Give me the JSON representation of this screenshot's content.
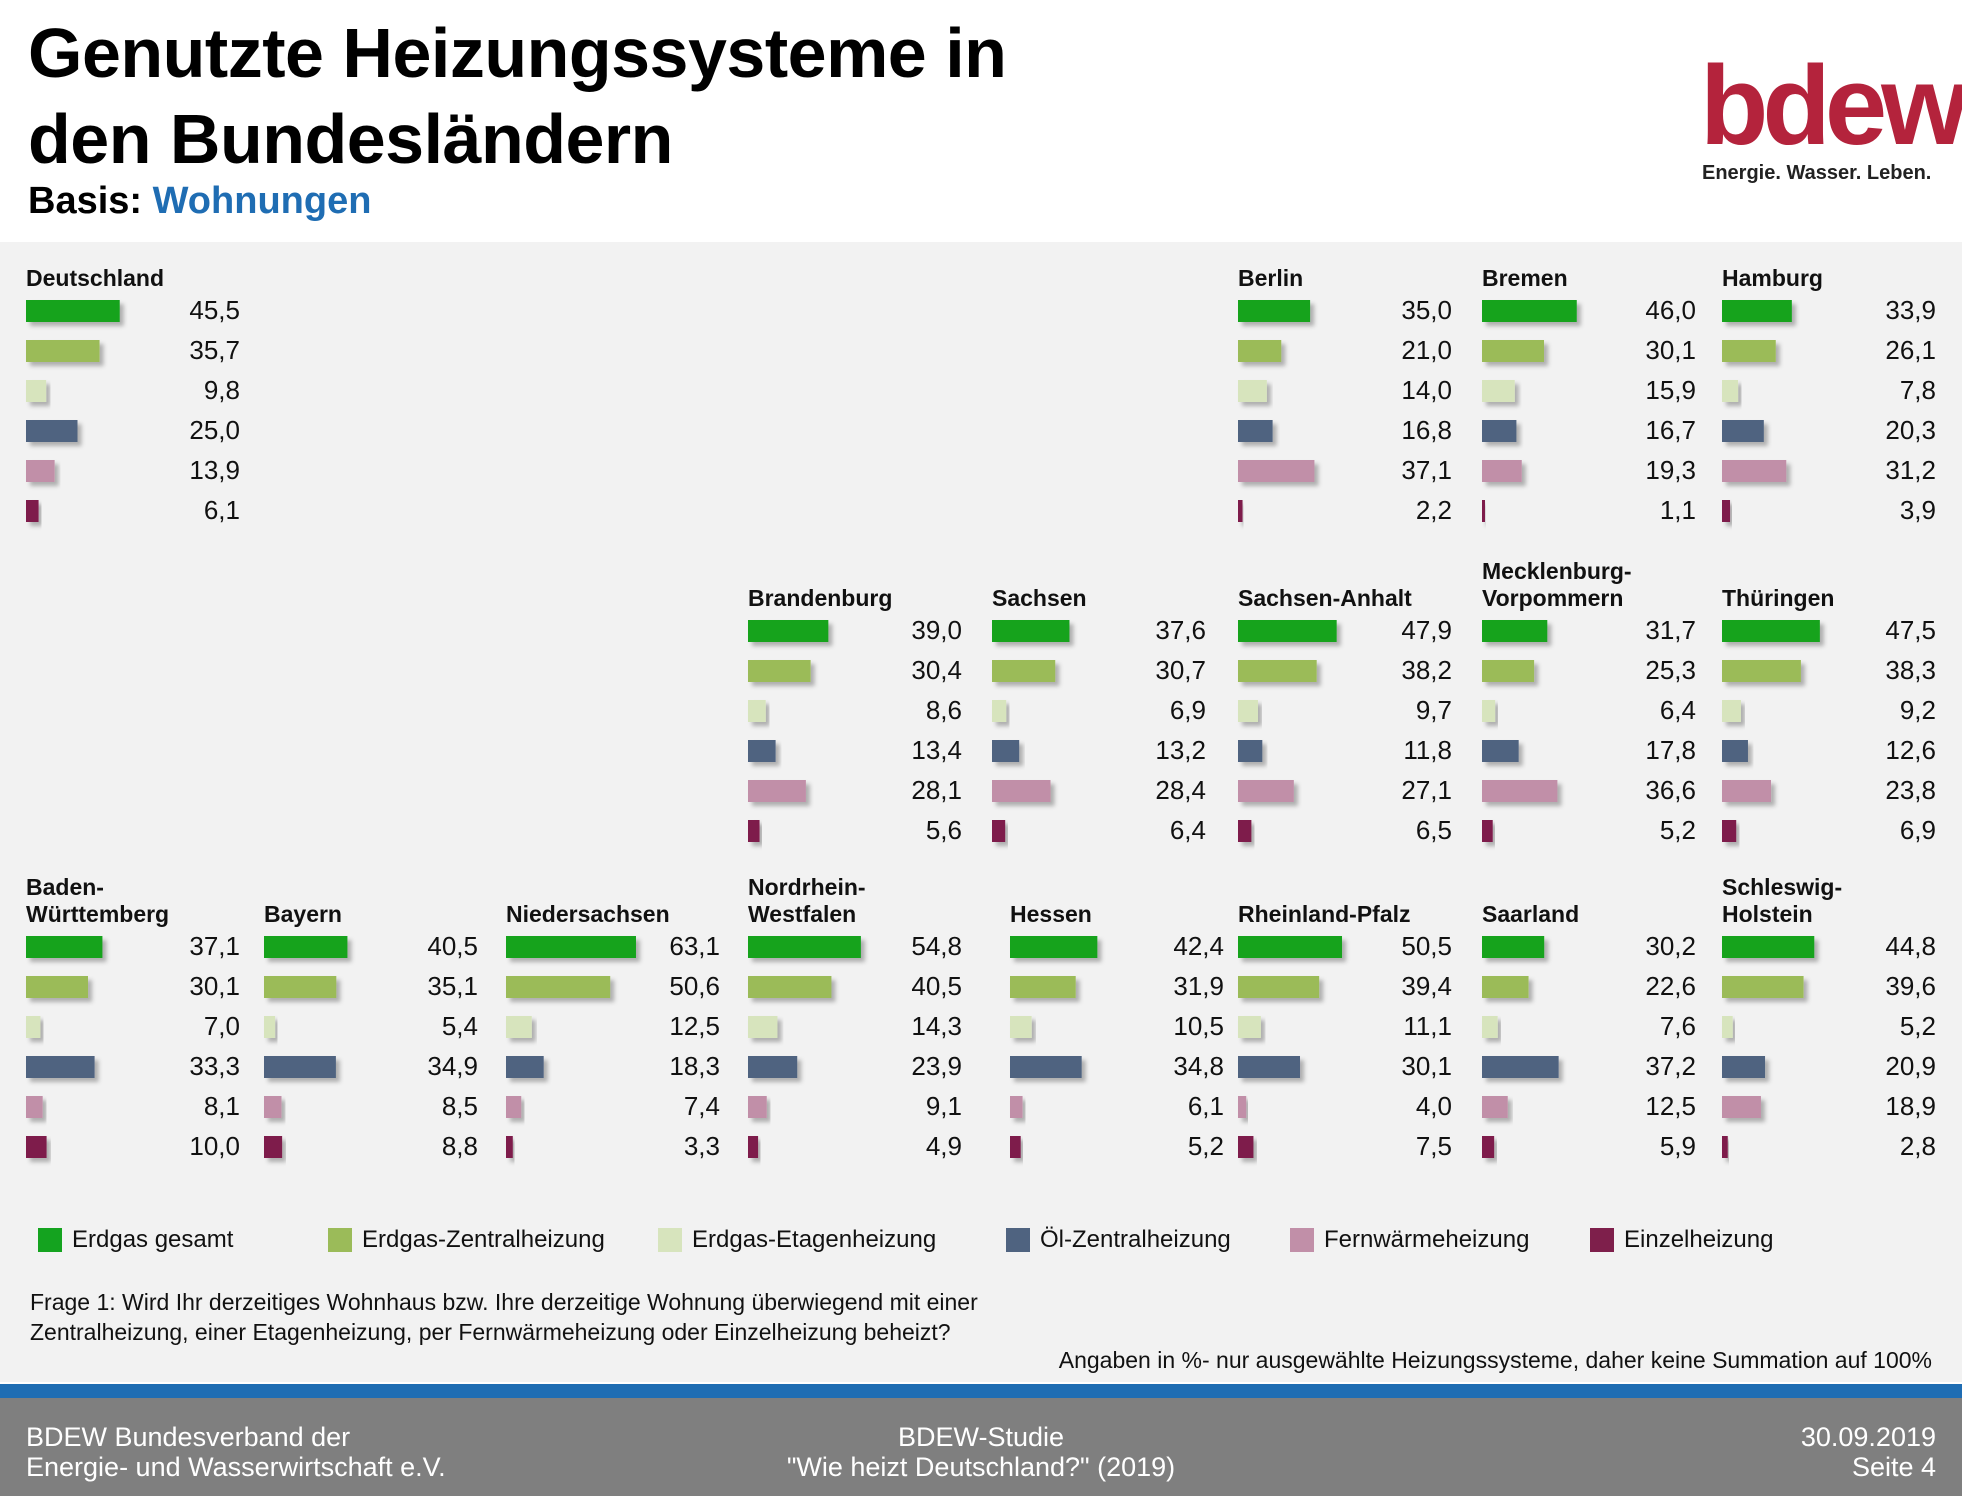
{
  "header": {
    "title_line1": "Genutzte Heizungssysteme in",
    "title_line2": "den Bundesländern",
    "basis_label": "Basis:",
    "basis_value": "Wohnungen"
  },
  "logo": {
    "word": "bdew",
    "tagline": "Energie. Wasser. Leben."
  },
  "chart_data": {
    "type": "bar",
    "orientation": "horizontal",
    "unit": "%",
    "categories": [
      "Erdgas gesamt",
      "Erdgas-Zentralheizung",
      "Erdgas-Etagenheizung",
      "Öl-Zentralheizung",
      "Fernwärmeheizung",
      "Einzelheizung"
    ],
    "colors": [
      "#14a31f",
      "#9bbb59",
      "#d7e4bd",
      "#4f6380",
      "#c18fa8",
      "#7e1f4b"
    ],
    "regions": [
      {
        "name": "Deutschland",
        "values": [
          45.5,
          35.7,
          9.8,
          25.0,
          13.9,
          6.1
        ]
      },
      {
        "name": "Berlin",
        "values": [
          35.0,
          21.0,
          14.0,
          16.8,
          37.1,
          2.2
        ]
      },
      {
        "name": "Bremen",
        "values": [
          46.0,
          30.1,
          15.9,
          16.7,
          19.3,
          1.1
        ]
      },
      {
        "name": "Hamburg",
        "values": [
          33.9,
          26.1,
          7.8,
          20.3,
          31.2,
          3.9
        ]
      },
      {
        "name": "Brandenburg",
        "values": [
          39.0,
          30.4,
          8.6,
          13.4,
          28.1,
          5.6
        ]
      },
      {
        "name": "Sachsen",
        "values": [
          37.6,
          30.7,
          6.9,
          13.2,
          28.4,
          6.4
        ]
      },
      {
        "name": "Sachsen-Anhalt",
        "values": [
          47.9,
          38.2,
          9.7,
          11.8,
          27.1,
          6.5
        ]
      },
      {
        "name": "Mecklenburg-Vorpommern",
        "label_lines": [
          "Mecklenburg-",
          "Vorpommern"
        ],
        "values": [
          31.7,
          25.3,
          6.4,
          17.8,
          36.6,
          5.2
        ]
      },
      {
        "name": "Thüringen",
        "values": [
          47.5,
          38.3,
          9.2,
          12.6,
          23.8,
          6.9
        ]
      },
      {
        "name": "Baden-Württemberg",
        "label_lines": [
          "Baden-",
          "Württemberg"
        ],
        "values": [
          37.1,
          30.1,
          7.0,
          33.3,
          8.1,
          10.0
        ]
      },
      {
        "name": "Bayern",
        "values": [
          40.5,
          35.1,
          5.4,
          34.9,
          8.5,
          8.8
        ]
      },
      {
        "name": "Niedersachsen",
        "values": [
          63.1,
          50.6,
          12.5,
          18.3,
          7.4,
          3.3
        ]
      },
      {
        "name": "Nordrhein-Westfalen",
        "label_lines": [
          "Nordrhein-",
          "Westfalen"
        ],
        "values": [
          54.8,
          40.5,
          14.3,
          23.9,
          9.1,
          4.9
        ]
      },
      {
        "name": "Hessen",
        "values": [
          42.4,
          31.9,
          10.5,
          34.8,
          6.1,
          5.2
        ]
      },
      {
        "name": "Rheinland-Pfalz",
        "values": [
          50.5,
          39.4,
          11.1,
          30.1,
          4.0,
          7.5
        ]
      },
      {
        "name": "Saarland",
        "values": [
          30.2,
          22.6,
          7.6,
          37.2,
          12.5,
          5.9
        ]
      },
      {
        "name": "Schleswig-Holstein",
        "label_lines": [
          "Schleswig-",
          "Holstein"
        ],
        "values": [
          44.8,
          39.6,
          5.2,
          20.9,
          18.9,
          2.8
        ]
      }
    ]
  },
  "legend": {
    "items": [
      {
        "label": "Erdgas  gesamt"
      },
      {
        "label": "Erdgas-Zentralheizung"
      },
      {
        "label": "Erdgas-Etagenheizung"
      },
      {
        "label": "Öl-Zentralheizung"
      },
      {
        "label": "Fernwärmeheizung"
      },
      {
        "label": "Einzelheizung"
      }
    ]
  },
  "notes": {
    "question": "Frage 1: Wird Ihr derzeitiges Wohnhaus bzw. Ihre derzeitige Wohnung überwiegend mit einer Zentralheizung, einer Etagenheizung, per Fernwärmeheizung oder Einzelheizung beheizt?",
    "disclaimer": "Angaben in %- nur ausgewählte Heizungssysteme, daher keine Summation  auf 100%"
  },
  "footer": {
    "left": "BDEW Bundesverband der\nEnergie- und Wasserwirtschaft e.V.",
    "center": "BDEW-Studie\n\"Wie heizt Deutschland?\" (2019)",
    "right": "30.09.2019\nSeite 4"
  }
}
